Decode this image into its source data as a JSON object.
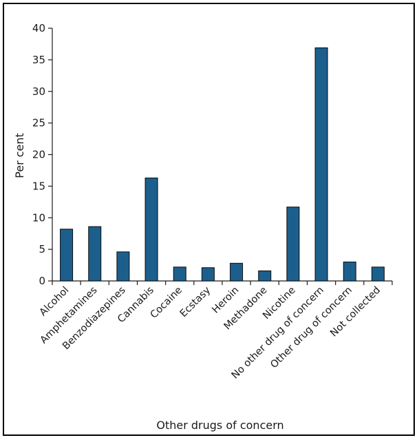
{
  "chart_data": {
    "type": "bar",
    "categories": [
      "Alcohol",
      "Amphetamines",
      "Benzodiazepines",
      "Cannabis",
      "Cocaine",
      "Ecstasy",
      "Heroin",
      "Methadone",
      "Nicotine",
      "No other drug of concern",
      "Other drug of concern",
      "Not collected"
    ],
    "values": [
      8.2,
      8.6,
      4.6,
      16.3,
      2.2,
      2.1,
      2.8,
      1.6,
      11.7,
      36.9,
      3.0,
      2.2
    ],
    "title": "",
    "xlabel": "Other drugs of concern",
    "ylabel": "Per cent",
    "ylim": [
      0,
      40
    ],
    "yticks": [
      "0",
      "5",
      "10",
      "15",
      "20",
      "25",
      "30",
      "35",
      "40"
    ],
    "bar_color": "#1d5f8c",
    "grid": false,
    "legend": "none"
  }
}
